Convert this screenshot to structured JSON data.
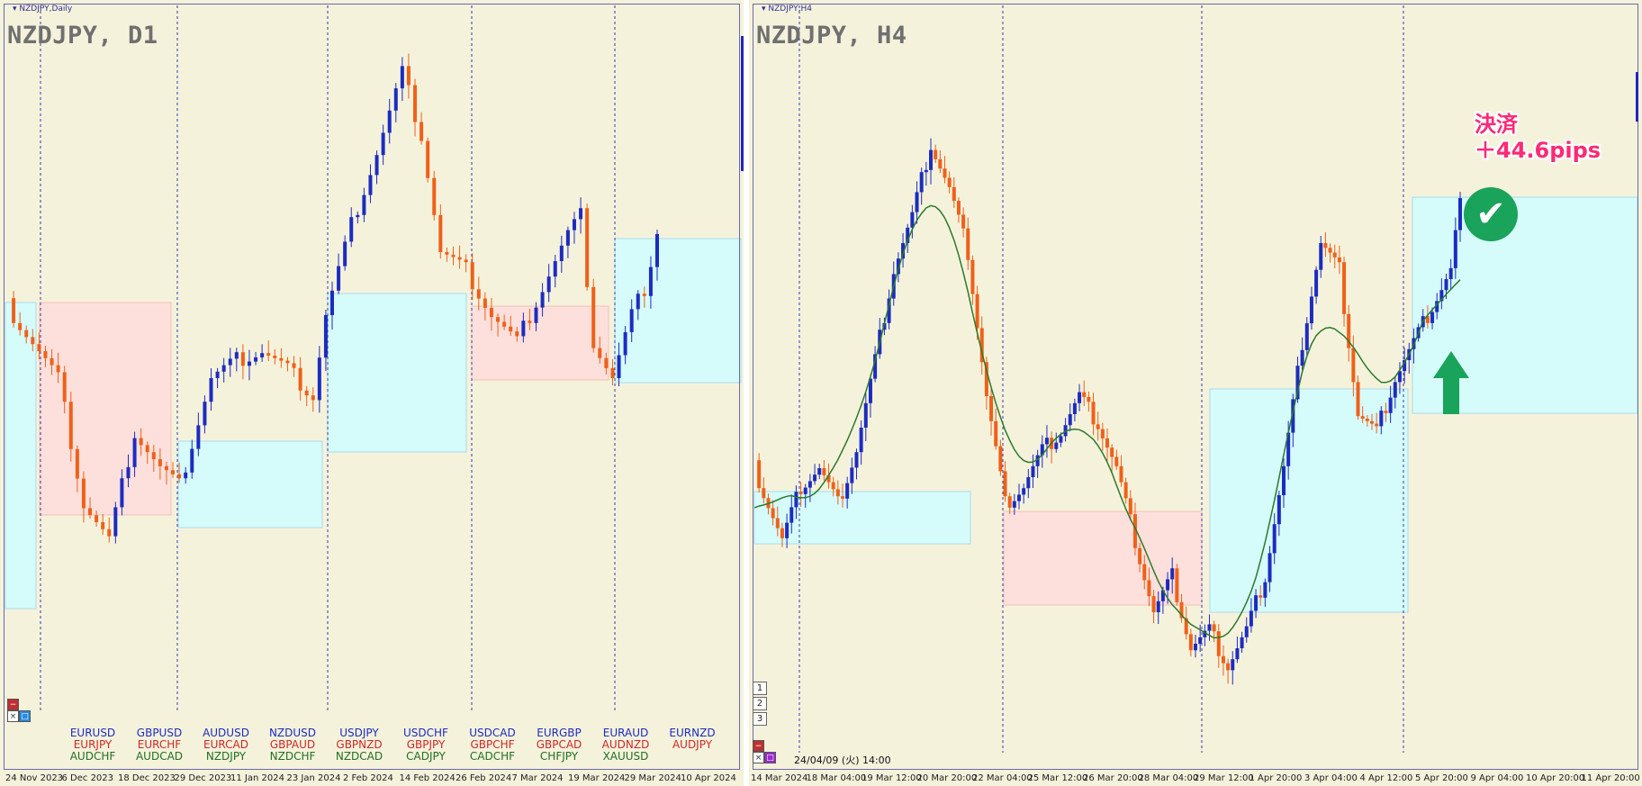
{
  "left": {
    "window_label": "▾ NZDJPY,Daily",
    "title": "NZDJPY, D1",
    "xaxis": [
      "24 Nov 2023",
      "6 Dec 2023",
      "18 Dec 2023",
      "29 Dec 2023",
      "11 Jan 2024",
      "23 Jan 2024",
      "2 Feb 2024",
      "14 Feb 2024",
      "26 Feb 2024",
      "7 Mar 2024",
      "19 Mar 2024",
      "29 Mar 2024",
      "10 Apr 2024"
    ],
    "symbols": [
      {
        "a": "EURUSD",
        "b": "EURJPY",
        "c": "AUDCHF"
      },
      {
        "a": "GBPUSD",
        "b": "EURCHF",
        "c": "AUDCAD"
      },
      {
        "a": "AUDUSD",
        "b": "EURCAD",
        "c": "NZDJPY"
      },
      {
        "a": "NZDUSD",
        "b": "GBPAUD",
        "c": "NZDCHF"
      },
      {
        "a": "USDJPY",
        "b": "GBPNZD",
        "c": "NZDCAD"
      },
      {
        "a": "USDCHF",
        "b": "GBPJPY",
        "c": "CADJPY"
      },
      {
        "a": "USDCAD",
        "b": "GBPCHF",
        "c": "CADCHF"
      },
      {
        "a": "EURGBP",
        "b": "GBPCAD",
        "c": "CHFJPY"
      },
      {
        "a": "EURAUD",
        "b": "AUDNZD",
        "c": "XAUUSD"
      },
      {
        "a": "EURNZD",
        "b": "AUDJPY",
        "c": ""
      }
    ],
    "mini_buttons": [
      "−",
      "×",
      "□"
    ]
  },
  "right": {
    "window_label": "▾ NZDJPY,H4",
    "title": "NZDJPY, H4",
    "xaxis": [
      "14 Mar 2024",
      "18 Mar 04:00",
      "19 Mar 12:00",
      "20 Mar 20:00",
      "22 Mar 04:00",
      "25 Mar 12:00",
      "26 Mar 20:00",
      "28 Mar 04:00",
      "29 Mar 12:00",
      "1 Apr 20:00",
      "3 Apr 04:00",
      "4 Apr 12:00",
      "5 Apr 20:00",
      "9 Apr 04:00",
      "10 Apr 20:00",
      "11 Apr 20:00"
    ],
    "nav_buttons": [
      "1",
      "2",
      "3"
    ],
    "mini_buttons": [
      "−",
      "×",
      "□"
    ],
    "timestamp": "24/04/09 (火) 14:00",
    "annotation_line1": "決済",
    "annotation_line2": "＋44.6pips",
    "check_symbol": "✔"
  },
  "colors": {
    "background": "#f5f2dc",
    "bull": "#1c2cc0",
    "bear": "#f06018",
    "zone_blue": "#d6fbfb",
    "zone_pink": "#fde0dc",
    "ma": "#2a7a2a",
    "annotation": "#ff2a74",
    "check_bg": "#1aa35a"
  }
}
